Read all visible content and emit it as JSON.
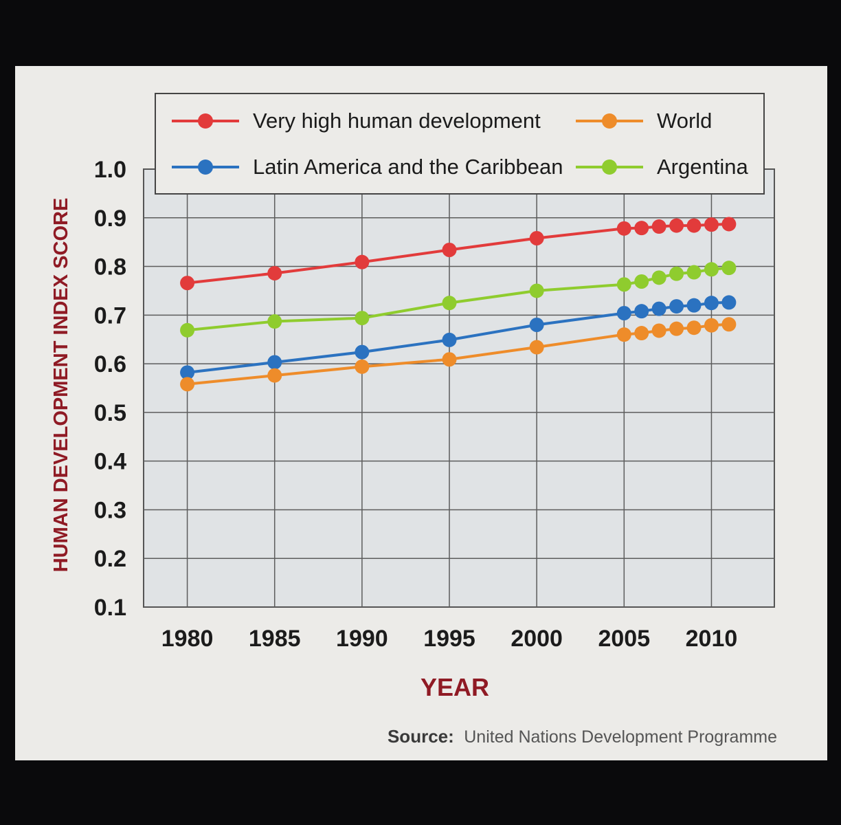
{
  "chart_data": {
    "type": "line",
    "xlabel": "YEAR",
    "ylabel": "HUMAN DEVELOPMENT INDEX SCORE",
    "xlim": [
      1977.5,
      2013.6
    ],
    "ylim": [
      0.1,
      1.0
    ],
    "x_ticks": [
      "1980",
      "1985",
      "1990",
      "1995",
      "2000",
      "2005",
      "2010"
    ],
    "y_ticks": [
      "0.1",
      "0.2",
      "0.3",
      "0.4",
      "0.5",
      "0.6",
      "0.7",
      "0.8",
      "0.9",
      "1.0"
    ],
    "grid": true,
    "legend": "top",
    "x": [
      1980,
      1985,
      1990,
      1995,
      2000,
      2005,
      2006,
      2007,
      2008,
      2009,
      2010,
      2011
    ],
    "series": [
      {
        "name": "Very high human development",
        "color": "#e23b3b",
        "values": [
          0.766,
          0.786,
          0.809,
          0.834,
          0.858,
          0.878,
          0.879,
          0.882,
          0.884,
          0.884,
          0.886,
          0.887
        ]
      },
      {
        "name": "Latin America and the Caribbean",
        "color": "#2b72c0",
        "values": [
          0.582,
          0.603,
          0.624,
          0.649,
          0.68,
          0.704,
          0.708,
          0.713,
          0.718,
          0.72,
          0.725,
          0.726
        ]
      },
      {
        "name": "World",
        "color": "#ee8c2a",
        "values": [
          0.558,
          0.576,
          0.594,
          0.609,
          0.634,
          0.66,
          0.663,
          0.668,
          0.672,
          0.674,
          0.679,
          0.681
        ]
      },
      {
        "name": "Argentina",
        "color": "#8fcc2e",
        "values": [
          0.669,
          0.687,
          0.694,
          0.725,
          0.75,
          0.763,
          0.769,
          0.777,
          0.785,
          0.788,
          0.794,
          0.797
        ]
      }
    ]
  },
  "source": {
    "label": "Source:",
    "text": "United Nations Development Programme"
  }
}
